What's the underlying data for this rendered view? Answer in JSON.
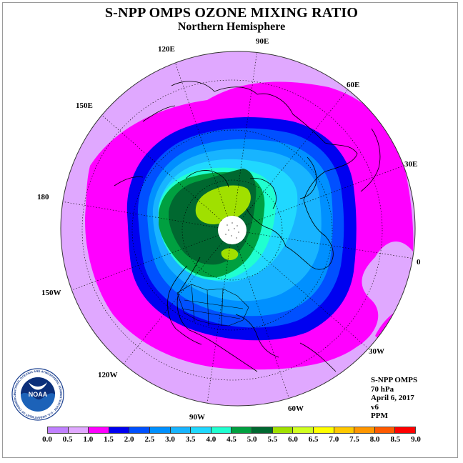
{
  "title": "S-NPP OMPS OZONE MIXING RATIO",
  "subtitle": "Northern Hemisphere",
  "info": {
    "line1": "S-NPP OMPS",
    "line2": "70 hPa",
    "line3": "April 6, 2017",
    "line4": "v6",
    "line5": "PPM"
  },
  "longitude_labels": [
    "90E",
    "60E",
    "30E",
    "0",
    "30W",
    "60W",
    "90W",
    "120W",
    "150W",
    "180",
    "150E",
    "120E"
  ],
  "logo": {
    "text": "NOAA",
    "ring_text": "NATIONAL OCEANIC AND ATMOSPHERIC ADMINISTRATION · U.S. DEPARTMENT OF COMMERCE"
  },
  "colorbar": {
    "ticks": [
      "0.0",
      "0.5",
      "1.0",
      "1.5",
      "2.0",
      "2.5",
      "3.0",
      "3.5",
      "4.0",
      "4.5",
      "5.0",
      "5.5",
      "6.0",
      "6.5",
      "7.0",
      "7.5",
      "8.0",
      "8.5",
      "9.0"
    ],
    "colors": [
      "#c080ff",
      "#e0a8ff",
      "#ff00ff",
      "#0000f0",
      "#0050ff",
      "#0090ff",
      "#18b4ff",
      "#20d8ff",
      "#20ffd0",
      "#00a040",
      "#006830",
      "#a0e000",
      "#d0ff20",
      "#ffff00",
      "#ffc800",
      "#ff9600",
      "#ff5a00",
      "#ff0000",
      "#a05030"
    ]
  },
  "map": {
    "background_color": "#e0a8ff",
    "levels": [
      {
        "range": "1.0-1.5",
        "color": "#ff00ff"
      },
      {
        "range": "1.5-2.0",
        "color": "#0000f0"
      },
      {
        "range": "2.0-2.5",
        "color": "#0050ff"
      },
      {
        "range": "2.5-3.0",
        "color": "#0090ff"
      },
      {
        "range": "3.0-3.5",
        "color": "#18b4ff"
      },
      {
        "range": "3.5-4.0",
        "color": "#20d8ff"
      },
      {
        "range": "4.0-4.5",
        "color": "#20ffd0"
      },
      {
        "range": "4.5-5.0",
        "color": "#00a040"
      },
      {
        "range": "5.0-5.5",
        "color": "#006830"
      },
      {
        "range": "5.5-6.0",
        "color": "#a0e000"
      }
    ],
    "pole_mask_color": "#ffffff"
  }
}
